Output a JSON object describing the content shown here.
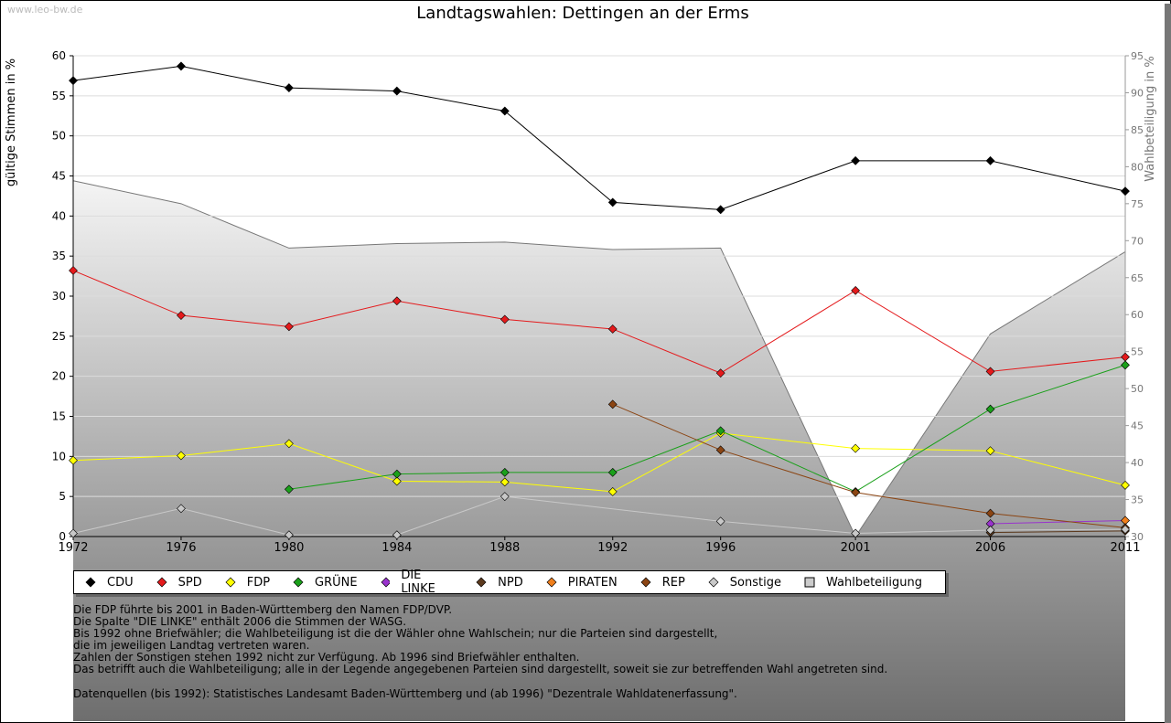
{
  "watermark": "www.leo-bw.de",
  "chart_data": {
    "type": "line",
    "title": "Landtagswahlen: Dettingen an der Erms",
    "ylabel": "gültige Stimmen in %",
    "y2label": "Wahlbeteiligung in %",
    "xlim": [
      1972,
      2011
    ],
    "ylim": [
      0,
      60
    ],
    "y2lim": [
      30,
      95
    ],
    "x_ticks": [
      1972,
      1976,
      1980,
      1984,
      1988,
      1992,
      1996,
      2001,
      2006,
      2011
    ],
    "y_ticks": [
      0,
      5,
      10,
      15,
      20,
      25,
      30,
      35,
      40,
      45,
      50,
      55,
      60
    ],
    "y2_ticks": [
      30,
      35,
      40,
      45,
      50,
      55,
      60,
      65,
      70,
      75,
      80,
      85,
      90,
      95
    ],
    "series": [
      {
        "name": "CDU",
        "color": "#000000",
        "points": [
          [
            1972,
            56.9
          ],
          [
            1976,
            58.7
          ],
          [
            1980,
            56.0
          ],
          [
            1984,
            55.6
          ],
          [
            1988,
            53.1
          ],
          [
            1992,
            41.7
          ],
          [
            1996,
            40.8
          ],
          [
            2001,
            46.9
          ],
          [
            2006,
            46.9
          ],
          [
            2011,
            43.1
          ]
        ]
      },
      {
        "name": "SPD",
        "color": "#e41a1c",
        "points": [
          [
            1972,
            33.2
          ],
          [
            1976,
            27.6
          ],
          [
            1980,
            26.2
          ],
          [
            1984,
            29.4
          ],
          [
            1988,
            27.1
          ],
          [
            1992,
            25.9
          ],
          [
            1996,
            20.4
          ],
          [
            2001,
            30.7
          ],
          [
            2006,
            20.6
          ],
          [
            2011,
            22.4
          ]
        ]
      },
      {
        "name": "FDP",
        "color": "#ffff00",
        "points": [
          [
            1972,
            9.5
          ],
          [
            1976,
            10.1
          ],
          [
            1980,
            11.6
          ],
          [
            1984,
            6.9
          ],
          [
            1988,
            6.8
          ],
          [
            1992,
            5.6
          ],
          [
            1996,
            12.9
          ],
          [
            2001,
            11.0
          ],
          [
            2006,
            10.7
          ],
          [
            2011,
            6.4
          ]
        ]
      },
      {
        "name": "GRÜNE",
        "color": "#1aa01a",
        "points": [
          [
            1980,
            5.9
          ],
          [
            1984,
            7.8
          ],
          [
            1988,
            8.0
          ],
          [
            1992,
            8.0
          ],
          [
            1996,
            13.2
          ],
          [
            2001,
            5.6
          ],
          [
            2006,
            15.9
          ],
          [
            2011,
            21.4
          ]
        ]
      },
      {
        "name": "DIE LINKE",
        "color": "#9933cc",
        "points": [
          [
            2006,
            1.6
          ],
          [
            2011,
            2.0
          ]
        ]
      },
      {
        "name": "NPD",
        "color": "#5c3a1e",
        "points": [
          [
            2006,
            0.5
          ],
          [
            2011,
            0.7
          ]
        ]
      },
      {
        "name": "PIRATEN",
        "color": "#f07f1c",
        "points": [
          [
            2011,
            2.0
          ]
        ]
      },
      {
        "name": "REP",
        "color": "#8b4513",
        "points": [
          [
            1992,
            16.5
          ],
          [
            1996,
            10.8
          ],
          [
            2001,
            5.5
          ],
          [
            2006,
            2.9
          ],
          [
            2011,
            1.1
          ]
        ]
      },
      {
        "name": "Sonstige",
        "color": "#c8c8c8",
        "points": [
          [
            1972,
            0.4
          ],
          [
            1976,
            3.5
          ],
          [
            1980,
            0.2
          ],
          [
            1984,
            0.2
          ],
          [
            1988,
            5.0
          ],
          [
            1996,
            1.9
          ],
          [
            2001,
            0.4
          ],
          [
            2006,
            0.8
          ],
          [
            2011,
            0.9
          ]
        ]
      }
    ],
    "turnout": {
      "name": "Wahlbeteiligung",
      "points": [
        [
          1972,
          78.1
        ],
        [
          1976,
          75.0
        ],
        [
          1980,
          69.0
        ],
        [
          1984,
          69.6
        ],
        [
          1988,
          69.8
        ],
        [
          1992,
          68.8
        ],
        [
          1996,
          69.0
        ],
        [
          2001,
          30.0
        ],
        [
          2006,
          57.4
        ],
        [
          2011,
          68.5
        ]
      ]
    }
  },
  "legend": [
    {
      "label": "CDU",
      "color": "#000000",
      "shape": "diamond"
    },
    {
      "label": "SPD",
      "color": "#e41a1c",
      "shape": "diamond"
    },
    {
      "label": "FDP",
      "color": "#ffff00",
      "shape": "diamond"
    },
    {
      "label": "GRÜNE",
      "color": "#1aa01a",
      "shape": "diamond"
    },
    {
      "label": "DIE LINKE",
      "color": "#9933cc",
      "shape": "diamond"
    },
    {
      "label": "NPD",
      "color": "#5c3a1e",
      "shape": "diamond"
    },
    {
      "label": "PIRATEN",
      "color": "#f07f1c",
      "shape": "diamond"
    },
    {
      "label": "REP",
      "color": "#8b4513",
      "shape": "diamond"
    },
    {
      "label": "Sonstige",
      "color": "#c8c8c8",
      "shape": "diamond"
    },
    {
      "label": "Wahlbeteiligung",
      "color": "#cccccc",
      "shape": "square"
    }
  ],
  "notes": [
    "Die FDP führte bis 2001 in Baden-Württemberg den Namen FDP/DVP.",
    "Die Spalte \"DIE LINKE\" enthält 2006 die Stimmen der WASG.",
    "Bis 1992 ohne Briefwähler; die Wahlbeteiligung ist die der Wähler ohne Wahlschein; nur die Parteien sind dargestellt,",
    "die im jeweiligen Landtag vertreten waren.",
    "Zahlen der Sonstigen stehen 1992 nicht zur Verfügung. Ab 1996 sind Briefwähler enthalten.",
    "Das betrifft auch die Wahlbeteiligung; alle in der Legende angegebenen Parteien sind dargestellt, soweit sie zur betreffenden Wahl angetreten sind."
  ],
  "source": "Datenquellen (bis 1992): Statistisches Landesamt Baden-Württemberg und (ab 1996) \"Dezentrale Wahldatenerfassung\"."
}
